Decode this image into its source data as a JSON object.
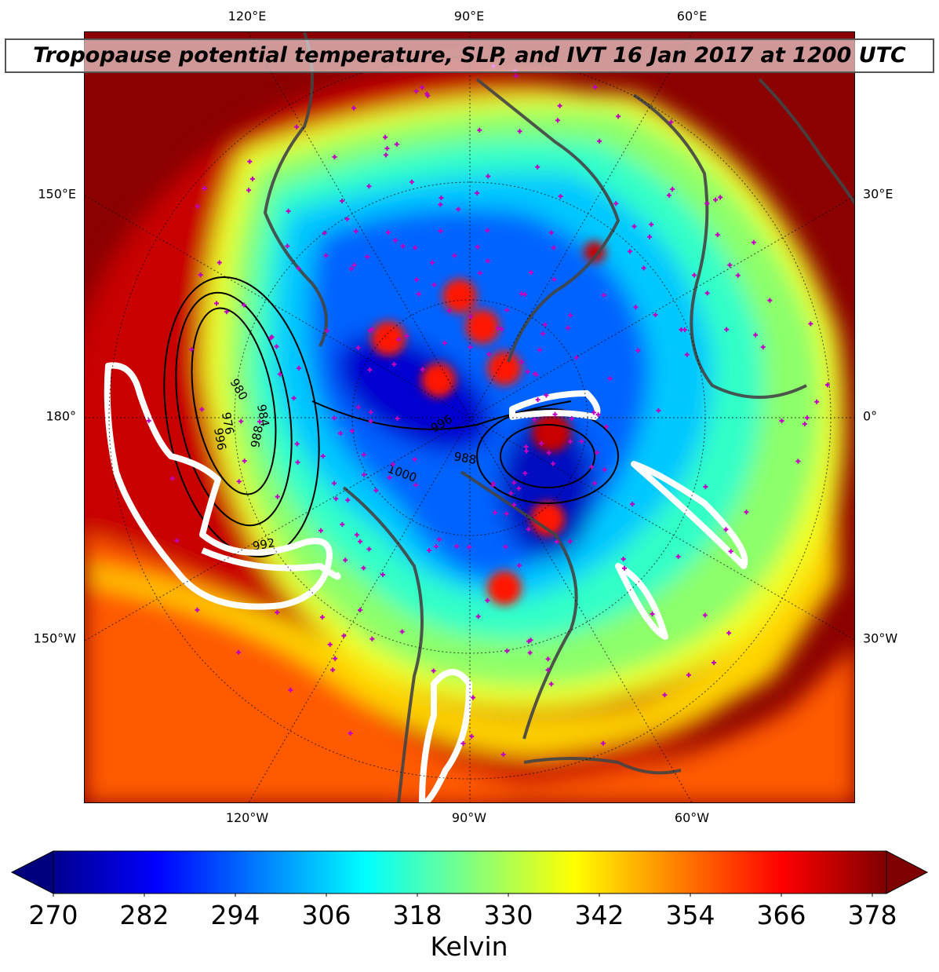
{
  "title": "Tropopause potential temperature, SLP, and IVT 16 Jan 2017 at 1200 UTC",
  "map": {
    "projection": "north-polar-stereographic",
    "lon_labels_top": [
      "120°E",
      "90°E",
      "60°E"
    ],
    "lon_labels_bottom": [
      "120°W",
      "90°W",
      "60°W"
    ],
    "lon_labels_left": [
      "150°E",
      "180°",
      "150°W"
    ],
    "lon_labels_right": [
      "30°E",
      "0°",
      "30°W"
    ],
    "slp_contour_labels": [
      "996",
      "980",
      "976",
      "984",
      "988",
      "992",
      "1000",
      "996",
      "988"
    ],
    "layers": {
      "tropopause_theta": "filled contours (jet colormap)",
      "slp": "black contours",
      "ivt": "white contours",
      "stations": "magenta plus markers",
      "coastlines": "gray lines"
    },
    "colors": {
      "ivt": "#ffffff",
      "slp": "#000000",
      "stations": "#c000c0",
      "coast": "#444444"
    }
  },
  "colorbar": {
    "colormap": "jet",
    "ticks": [
      "270",
      "282",
      "294",
      "306",
      "318",
      "330",
      "342",
      "354",
      "366",
      "378"
    ],
    "label": "Kelvin",
    "extend": "both"
  }
}
